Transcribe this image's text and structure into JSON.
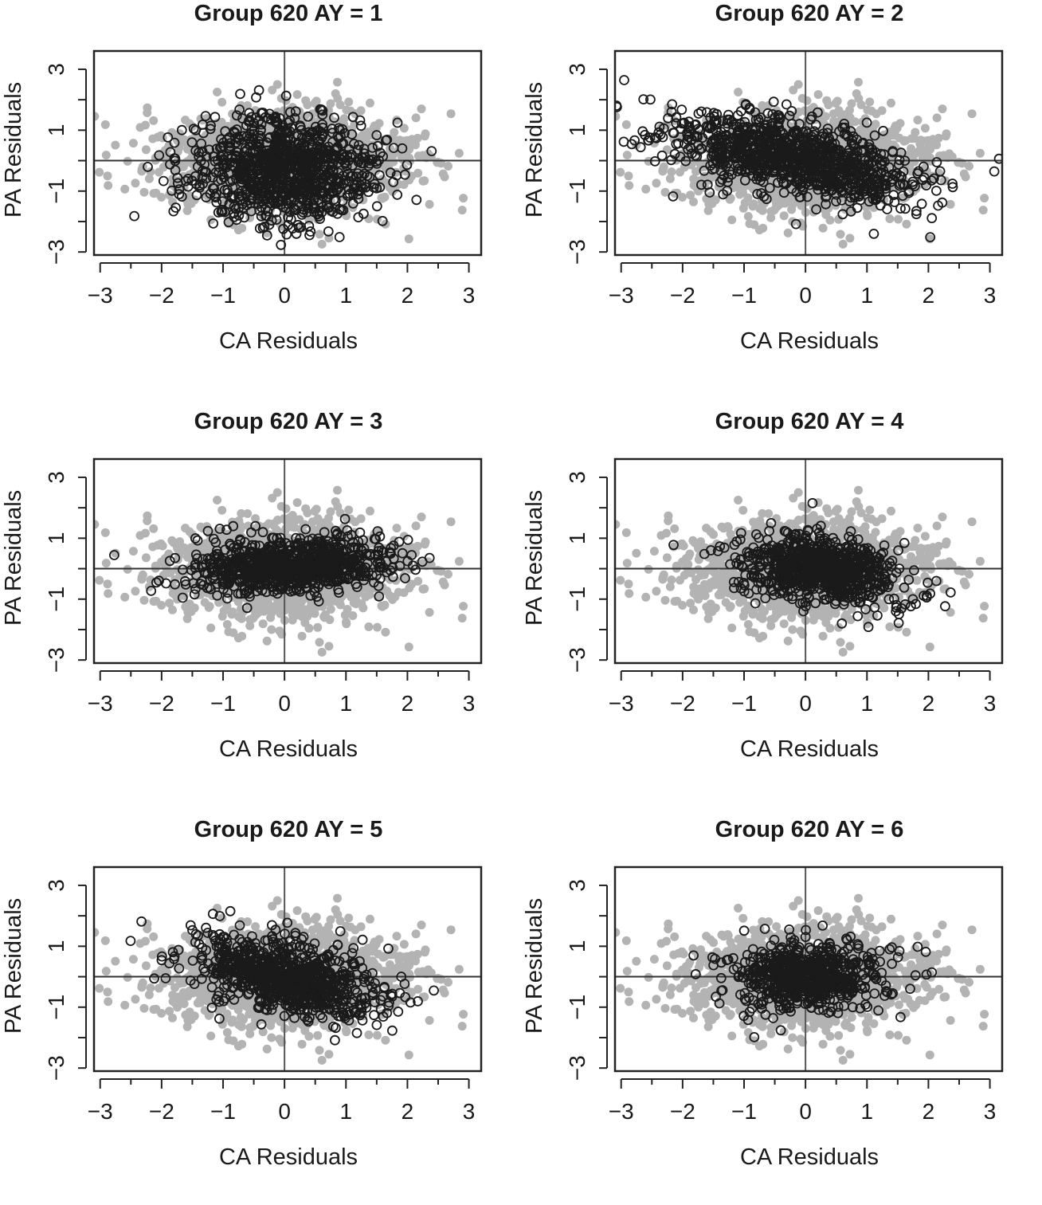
{
  "chart_data": [
    {
      "type": "scatter",
      "title": "Group 620 AY = 1",
      "xlabel": "CA Residuals",
      "ylabel": "PA Residuals",
      "xlim": [
        -3.1,
        3.2
      ],
      "ylim": [
        -3.1,
        3.6
      ],
      "xticks": [
        "−3",
        "−2",
        "−1",
        "0",
        "1",
        "2",
        "3"
      ],
      "yticks": [
        "−3",
        "−1",
        "1",
        "3"
      ],
      "ref_lines": {
        "x": 0,
        "y": 0
      },
      "series": [
        {
          "kind": "background",
          "color": "#b3b3b3",
          "cx": 0.0,
          "cy": 0.0,
          "sx": 1.0,
          "sy": 0.85,
          "n": 1400
        },
        {
          "kind": "highlight",
          "color": "#1a1a1a",
          "cx": 0.0,
          "cy": -0.25,
          "sx": 0.75,
          "sy": 0.85,
          "rho": 0.0,
          "n": 1000
        }
      ]
    },
    {
      "type": "scatter",
      "title": "Group 620 AY = 2",
      "xlabel": "CA Residuals",
      "ylabel": "PA Residuals",
      "xlim": [
        -3.1,
        3.2
      ],
      "ylim": [
        -3.1,
        3.6
      ],
      "xticks": [
        "−3",
        "−2",
        "−1",
        "0",
        "1",
        "2",
        "3"
      ],
      "yticks": [
        "−3",
        "−1",
        "1",
        "3"
      ],
      "ref_lines": {
        "x": 0,
        "y": 0
      },
      "series": [
        {
          "kind": "background",
          "color": "#b3b3b3",
          "cx": 0.0,
          "cy": 0.0,
          "sx": 1.0,
          "sy": 0.85,
          "n": 1400
        },
        {
          "kind": "highlight",
          "color": "#1a1a1a",
          "cx": -0.2,
          "cy": 0.1,
          "sx": 1.05,
          "sy": 0.75,
          "rho": -0.55,
          "n": 1000
        }
      ]
    },
    {
      "type": "scatter",
      "title": "Group 620 AY = 3",
      "xlabel": "CA Residuals",
      "ylabel": "PA Residuals",
      "xlim": [
        -3.1,
        3.2
      ],
      "ylim": [
        -3.1,
        3.6
      ],
      "xticks": [
        "−3",
        "−2",
        "−1",
        "0",
        "1",
        "2",
        "3"
      ],
      "yticks": [
        "−3",
        "−1",
        "1",
        "3"
      ],
      "ref_lines": {
        "x": 0,
        "y": 0
      },
      "series": [
        {
          "kind": "background",
          "color": "#b3b3b3",
          "cx": 0.0,
          "cy": 0.0,
          "sx": 1.0,
          "sy": 0.85,
          "n": 1400
        },
        {
          "kind": "highlight",
          "color": "#1a1a1a",
          "cx": 0.1,
          "cy": 0.1,
          "sx": 0.8,
          "sy": 0.45,
          "rho": 0.15,
          "n": 900
        }
      ]
    },
    {
      "type": "scatter",
      "title": "Group 620 AY = 4",
      "xlabel": "CA Residuals",
      "ylabel": "PA Residuals",
      "xlim": [
        -3.1,
        3.2
      ],
      "ylim": [
        -3.1,
        3.6
      ],
      "xticks": [
        "−3",
        "−2",
        "−1",
        "0",
        "1",
        "2",
        "3"
      ],
      "yticks": [
        "−3",
        "−1",
        "1",
        "3"
      ],
      "ref_lines": {
        "x": 0,
        "y": 0
      },
      "series": [
        {
          "kind": "background",
          "color": "#b3b3b3",
          "cx": 0.0,
          "cy": 0.0,
          "sx": 1.0,
          "sy": 0.85,
          "n": 1400
        },
        {
          "kind": "highlight",
          "color": "#1a1a1a",
          "cx": 0.2,
          "cy": 0.0,
          "sx": 0.65,
          "sy": 0.6,
          "rho": -0.3,
          "n": 800
        }
      ]
    },
    {
      "type": "scatter",
      "title": "Group 620 AY = 5",
      "xlabel": "CA Residuals",
      "ylabel": "PA Residuals",
      "xlim": [
        -3.1,
        3.2
      ],
      "ylim": [
        -3.1,
        3.6
      ],
      "xticks": [
        "−3",
        "−2",
        "−1",
        "0",
        "1",
        "2",
        "3"
      ],
      "yticks": [
        "−3",
        "−1",
        "1",
        "3"
      ],
      "ref_lines": {
        "x": 0,
        "y": 0
      },
      "series": [
        {
          "kind": "background",
          "color": "#b3b3b3",
          "cx": 0.0,
          "cy": 0.0,
          "sx": 1.0,
          "sy": 0.85,
          "n": 1400
        },
        {
          "kind": "highlight",
          "color": "#1a1a1a",
          "cx": 0.0,
          "cy": 0.0,
          "sx": 0.75,
          "sy": 0.7,
          "rho": -0.45,
          "n": 850
        }
      ]
    },
    {
      "type": "scatter",
      "title": "Group 620 AY = 6",
      "xlabel": "CA Residuals",
      "ylabel": "PA Residuals",
      "xlim": [
        -3.1,
        3.2
      ],
      "ylim": [
        -3.1,
        3.6
      ],
      "xticks": [
        "−3",
        "−2",
        "−1",
        "0",
        "1",
        "2",
        "3"
      ],
      "yticks": [
        "−3",
        "−1",
        "1",
        "3"
      ],
      "ref_lines": {
        "x": 0,
        "y": 0
      },
      "series": [
        {
          "kind": "background",
          "color": "#b3b3b3",
          "cx": 0.0,
          "cy": 0.0,
          "sx": 1.0,
          "sy": 0.85,
          "n": 1400
        },
        {
          "kind": "highlight",
          "color": "#1a1a1a",
          "cx": 0.0,
          "cy": 0.0,
          "sx": 0.6,
          "sy": 0.55,
          "rho": 0.0,
          "n": 700
        }
      ]
    }
  ]
}
